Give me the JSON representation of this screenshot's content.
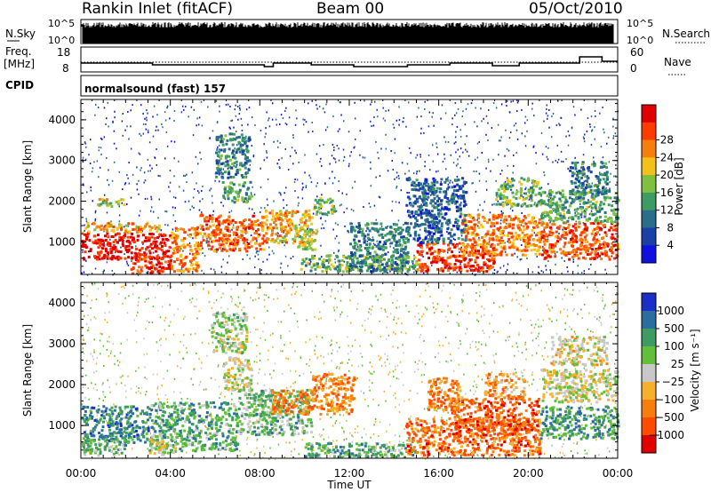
{
  "header": {
    "station": "Rankin Inlet (fitACF)",
    "beam": "Beam 00",
    "date": "05/Oct/2010"
  },
  "strip": {
    "nsky_label": "N.Sky",
    "nsky_ticks": [
      "10^5",
      "10^0"
    ],
    "nsearch_ticks": [
      "10^5",
      "10^0"
    ],
    "nsearch_label": "N.Search",
    "freq_label": "Freq.",
    "freq_unit": "[MHz]",
    "freq_ticks": [
      "18",
      "8"
    ],
    "nave_ticks": [
      "60",
      "0"
    ],
    "nave_label": "Nave",
    "cpid_label": "CPID",
    "cpid_text": "normalsound (fast) 157"
  },
  "chart_data": [
    {
      "type": "heatmap",
      "name": "power",
      "ylabel": "Slant Range [km]",
      "y_ticks": [
        "1000",
        "2000",
        "3000",
        "4000"
      ],
      "ylim": [
        200,
        4500
      ],
      "xlim": [
        0,
        24
      ],
      "colorbar_label": "Power [dB]",
      "colorbar_ticks": [
        "4",
        "8",
        "12",
        "16",
        "20",
        "24",
        "28"
      ],
      "colors": [
        "#1010e0",
        "#1a3fa6",
        "#2a6e8a",
        "#3e9c63",
        "#7ec040",
        "#f2c21a",
        "#f77d0c",
        "#ff3b00",
        "#e00000"
      ],
      "segments": [
        {
          "t0": 0.0,
          "t1": 4.0,
          "r0": 600,
          "r1": 1250,
          "v": 1.0
        },
        {
          "t0": 2.2,
          "t1": 4.0,
          "r0": 250,
          "r1": 700,
          "v": 0.95
        },
        {
          "t0": 4.0,
          "t1": 5.2,
          "r0": 300,
          "r1": 1400,
          "v": 0.75
        },
        {
          "t0": 0.0,
          "t1": 3.5,
          "r0": 1250,
          "r1": 1500,
          "v": 0.7
        },
        {
          "t0": 0.6,
          "t1": 2.0,
          "r0": 1900,
          "r1": 2100,
          "v": 0.55
        },
        {
          "t0": 5.2,
          "t1": 8.2,
          "r0": 800,
          "r1": 1700,
          "v": 0.8
        },
        {
          "t0": 8.2,
          "t1": 10.3,
          "r0": 1000,
          "r1": 1800,
          "v": 0.7
        },
        {
          "t0": 10.3,
          "t1": 11.3,
          "r0": 1700,
          "r1": 2100,
          "v": 0.45
        },
        {
          "t0": 6.3,
          "t1": 7.6,
          "r0": 2000,
          "r1": 2500,
          "v": 0.4
        },
        {
          "t0": 6.0,
          "t1": 7.5,
          "r0": 2600,
          "r1": 3700,
          "v": 0.3
        },
        {
          "t0": 9.5,
          "t1": 10.5,
          "r0": 800,
          "r1": 1400,
          "v": 0.55
        },
        {
          "t0": 9.8,
          "t1": 15.0,
          "r0": 300,
          "r1": 700,
          "v": 0.45
        },
        {
          "t0": 15.0,
          "t1": 18.5,
          "r0": 300,
          "r1": 1000,
          "v": 0.9
        },
        {
          "t0": 17.0,
          "t1": 20.5,
          "r0": 700,
          "r1": 1700,
          "v": 0.75
        },
        {
          "t0": 18.5,
          "t1": 20.5,
          "r0": 1900,
          "r1": 2600,
          "v": 0.45
        },
        {
          "t0": 20.5,
          "t1": 24.0,
          "r0": 600,
          "r1": 1500,
          "v": 0.85
        },
        {
          "t0": 20.5,
          "t1": 24.0,
          "r0": 1500,
          "r1": 2300,
          "v": 0.4
        },
        {
          "t0": 21.8,
          "t1": 23.5,
          "r0": 2100,
          "r1": 3000,
          "v": 0.3
        },
        {
          "t0": 14.5,
          "t1": 17.2,
          "r0": 1000,
          "r1": 2600,
          "v": 0.2
        },
        {
          "t0": 12.0,
          "t1": 14.6,
          "r0": 300,
          "r1": 1500,
          "v": 0.3
        }
      ]
    },
    {
      "type": "heatmap",
      "name": "velocity",
      "ylabel": "Slant Range [km]",
      "xlabel": "Time UT",
      "x_ticks": [
        "00:00",
        "04:00",
        "08:00",
        "12:00",
        "16:00",
        "20:00",
        "00:00"
      ],
      "y_ticks": [
        "1000",
        "2000",
        "3000",
        "4000"
      ],
      "ylim": [
        200,
        4500
      ],
      "xlim": [
        0,
        24
      ],
      "colorbar_label": "Velocity [m s⁻¹]",
      "colorbar_ticks": [
        "1000",
        "500",
        "100",
        "25",
        "−25",
        "−100",
        "−500",
        "−1000"
      ],
      "colors": [
        "#1a2ec8",
        "#2a6ea0",
        "#3e9c63",
        "#62bf3a",
        "#c8c8c8",
        "#f6b02a",
        "#f77d0c",
        "#ff4a00",
        "#e00000"
      ],
      "segments": [
        {
          "t0": 0.0,
          "t1": 3.0,
          "r0": 600,
          "r1": 1500,
          "v": 0.2
        },
        {
          "t0": 0.0,
          "t1": 2.0,
          "r0": 300,
          "r1": 700,
          "v": 0.35
        },
        {
          "t0": 3.0,
          "t1": 7.0,
          "r0": 400,
          "r1": 1600,
          "v": 0.3
        },
        {
          "t0": 3.0,
          "t1": 4.2,
          "r0": 300,
          "r1": 700,
          "v": 0.5
        },
        {
          "t0": 7.0,
          "t1": 10.3,
          "r0": 800,
          "r1": 1900,
          "v": 0.35
        },
        {
          "t0": 8.5,
          "t1": 10.3,
          "r0": 1300,
          "r1": 1900,
          "v": 0.75
        },
        {
          "t0": 10.3,
          "t1": 12.2,
          "r0": 1300,
          "r1": 2300,
          "v": 0.75
        },
        {
          "t0": 6.3,
          "t1": 7.6,
          "r0": 1900,
          "r1": 2700,
          "v": 0.5
        },
        {
          "t0": 5.8,
          "t1": 7.4,
          "r0": 2800,
          "r1": 3800,
          "v": 0.45
        },
        {
          "t0": 10.0,
          "t1": 15.0,
          "r0": 250,
          "r1": 600,
          "v": 0.3
        },
        {
          "t0": 14.5,
          "t1": 20.5,
          "r0": 300,
          "r1": 1200,
          "v": 0.8
        },
        {
          "t0": 16.5,
          "t1": 20.5,
          "r0": 800,
          "r1": 1700,
          "v": 0.85
        },
        {
          "t0": 18.0,
          "t1": 19.8,
          "r0": 1700,
          "r1": 2300,
          "v": 0.7
        },
        {
          "t0": 20.5,
          "t1": 24.0,
          "r0": 700,
          "r1": 1500,
          "v": 0.25
        },
        {
          "t0": 20.5,
          "t1": 24.0,
          "r0": 1600,
          "r1": 2400,
          "v": 0.5
        },
        {
          "t0": 21.0,
          "t1": 23.5,
          "r0": 2500,
          "r1": 3200,
          "v": 0.55
        },
        {
          "t0": 15.5,
          "t1": 17.0,
          "r0": 1400,
          "r1": 2200,
          "v": 0.75
        }
      ]
    }
  ]
}
